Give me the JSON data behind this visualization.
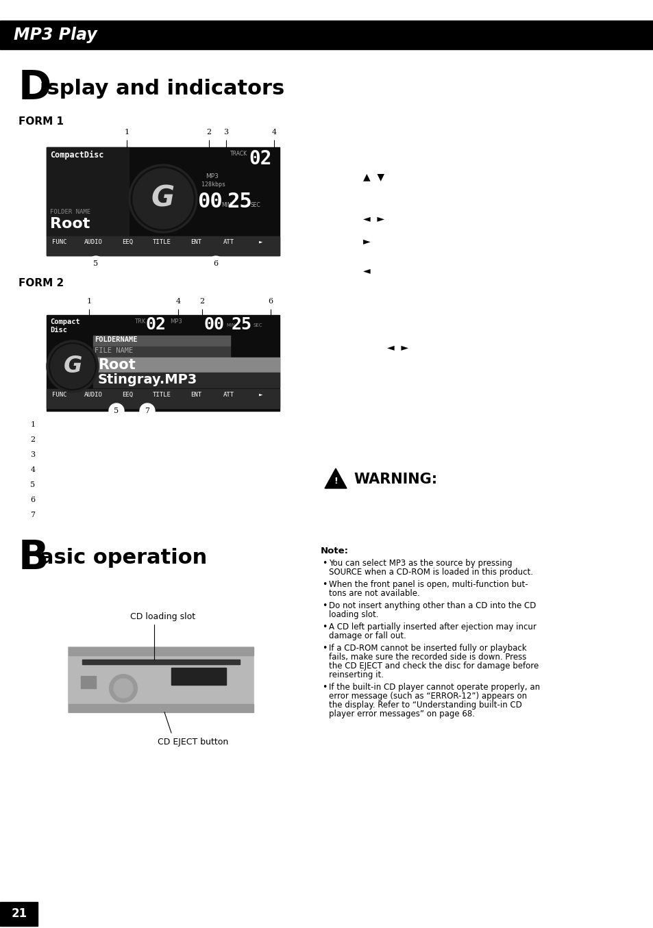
{
  "title_bar_text": "MP3 Play",
  "section1_big": "D",
  "section1_rest": "isplay and indicators",
  "form1_label": "FORM 1",
  "form2_label": "FORM 2",
  "basic_big": "B",
  "basic_rest": "asic operation",
  "page_number": "21",
  "warning_text": "WARNING:",
  "note_label": "Note:",
  "note_bullets": [
    "You can select MP3 as the source by pressing\nSOURCE when a CD-ROM is loaded in this product.",
    "When the front panel is open, multi-function but-\ntons are not available.",
    "Do not insert anything other than a CD into the CD\nloading slot.",
    "A CD left partially inserted after ejection may incur\ndamage or fall out.",
    "If a CD-ROM cannot be inserted fully or playback\nfails, make sure the recorded side is down. Press\nthe CD EJECT and check the disc for damage before\nreinserting it.",
    "If the built-in CD player cannot operate properly, an\nerror message (such as “ERROR-12”) appears on\nthe display. Refer to “Understanding built-in CD\nplayer error messages” on page 68."
  ],
  "legend_numbers": [
    "1",
    "2",
    "3",
    "4",
    "5",
    "6",
    "7"
  ],
  "cd_loading_slot_label": "CD loading slot",
  "cd_eject_label": "CD EJECT button",
  "form1_nums_above": [
    [
      "1",
      185,
      193
    ],
    [
      "2",
      305,
      193
    ],
    [
      "3",
      330,
      193
    ],
    [
      "4",
      400,
      193
    ]
  ],
  "form1_nums_below": [
    [
      "5",
      140,
      385
    ],
    [
      "6",
      315,
      385
    ]
  ],
  "form2_nums_above": [
    [
      "1",
      130,
      440
    ],
    [
      "4",
      260,
      440
    ],
    [
      "2",
      295,
      440
    ],
    [
      "6",
      395,
      440
    ]
  ],
  "form2_nums_below": [
    [
      "5",
      170,
      600
    ],
    [
      "7",
      215,
      600
    ]
  ],
  "arrows": [
    [
      530,
      258,
      "▲  ▼"
    ],
    [
      530,
      320,
      "◄  ►"
    ],
    [
      530,
      352,
      "►"
    ],
    [
      530,
      395,
      "◄"
    ],
    [
      565,
      508,
      "◄  ►"
    ]
  ]
}
